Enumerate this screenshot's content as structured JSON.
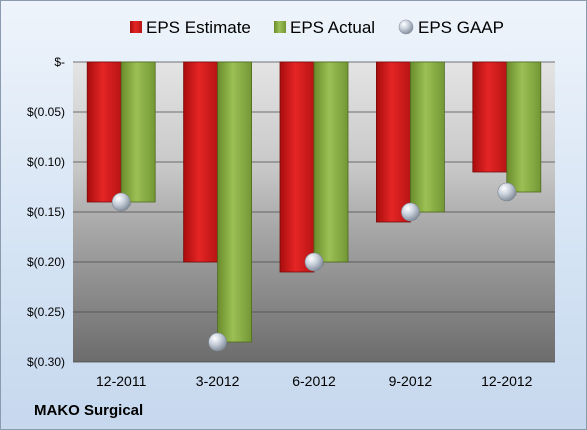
{
  "company": "MAKO Surgical",
  "chart_data": {
    "type": "bar",
    "categories": [
      "12-2011",
      "3-2012",
      "6-2012",
      "9-2012",
      "12-2012"
    ],
    "series": [
      {
        "name": "EPS Estimate",
        "type": "bar",
        "values": [
          -0.14,
          -0.2,
          -0.21,
          -0.16,
          -0.11
        ],
        "color": "#e0201e"
      },
      {
        "name": "EPS Actual",
        "type": "bar",
        "values": [
          -0.14,
          -0.28,
          -0.2,
          -0.15,
          -0.13
        ],
        "color": "#8cb043"
      },
      {
        "name": "EPS GAAP",
        "type": "marker",
        "values": [
          -0.14,
          -0.28,
          -0.2,
          -0.15,
          -0.13
        ],
        "color": "#b8c4d4"
      }
    ],
    "ylim": [
      -0.3,
      0
    ],
    "yticks": [
      0,
      -0.05,
      -0.1,
      -0.15,
      -0.2,
      -0.25,
      -0.3
    ],
    "ytick_labels": [
      "$-",
      "$(0.05)",
      "$(0.10)",
      "$(0.15)",
      "$(0.20)",
      "$(0.25)",
      "$(0.30)"
    ],
    "grid": true,
    "legend": "top"
  }
}
